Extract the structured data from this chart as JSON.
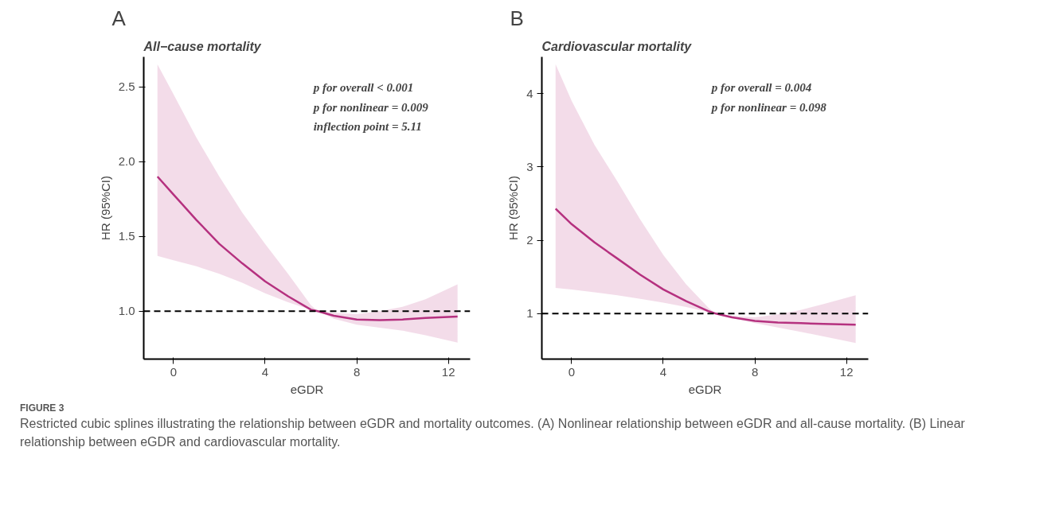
{
  "chart_data": [
    {
      "type": "line",
      "title": "All−cause mortality",
      "xlabel": "eGDR",
      "ylabel": "HR (95%CI)",
      "annotations": [
        "A",
        "p for overall < 0.001",
        "p for nonlinear = 0.009",
        "inflection point = 5.11"
      ],
      "x": [
        -0.7,
        0,
        1,
        2,
        3,
        4,
        5,
        6,
        6.3,
        7,
        8,
        9,
        10,
        11,
        12.4
      ],
      "series": [
        {
          "color": "#b5317f",
          "values": [
            1.9,
            1.78,
            1.61,
            1.45,
            1.32,
            1.2,
            1.1,
            1.01,
            1.0,
            0.97,
            0.945,
            0.94,
            0.945,
            0.955,
            0.965
          ],
          "lower": [
            1.37,
            1.34,
            1.3,
            1.25,
            1.19,
            1.12,
            1.06,
            1.01,
            1.0,
            0.95,
            0.91,
            0.89,
            0.87,
            0.84,
            0.79
          ],
          "upper": [
            2.65,
            2.45,
            2.16,
            1.9,
            1.66,
            1.45,
            1.25,
            1.04,
            1.0,
            0.99,
            0.98,
            1.0,
            1.03,
            1.08,
            1.18
          ]
        }
      ],
      "xlim": [
        -1.3,
        12.95
      ],
      "ylim": [
        0.68,
        2.7
      ],
      "xticks": [
        0,
        4,
        8,
        12
      ],
      "yticks": [
        {
          "value": 1.0,
          "label": "1.0"
        },
        {
          "value": 1.5,
          "label": "1.5"
        },
        {
          "value": 2.0,
          "label": "2.0"
        },
        {
          "value": 2.5,
          "label": "2.5"
        }
      ],
      "ref_lines": [
        {
          "axis": "y",
          "value": 1,
          "line_style": "dashed",
          "color": "#000000"
        }
      ],
      "grid": false,
      "line_style": "solid",
      "marker": "none"
    },
    {
      "type": "line",
      "title": "Cardiovascular mortality",
      "xlabel": "eGDR",
      "ylabel": "HR (95%CI)",
      "annotations": [
        "B",
        "p for overall = 0.004",
        "p for nonlinear = 0.098",
        "FIGURE 3",
        "Restricted cubic splines illustrating the relationship between eGDR and mortality outcomes. (A) Nonlinear relationship between eGDR and all-cause mortality. (B) Linear relationship between eGDR and cardiovascular mortality."
      ],
      "x": [
        -0.7,
        0,
        1,
        2,
        3,
        4,
        5,
        6,
        6.3,
        7,
        8,
        9,
        10,
        11,
        12.4
      ],
      "series": [
        {
          "color": "#b5317f",
          "values": [
            2.43,
            2.22,
            1.97,
            1.75,
            1.53,
            1.33,
            1.17,
            1.03,
            1.0,
            0.95,
            0.9,
            0.88,
            0.87,
            0.86,
            0.85
          ],
          "lower": [
            1.35,
            1.33,
            1.29,
            1.25,
            1.2,
            1.15,
            1.09,
            1.02,
            1.0,
            0.94,
            0.87,
            0.81,
            0.75,
            0.69,
            0.6
          ],
          "upper": [
            4.4,
            3.9,
            3.3,
            2.8,
            2.28,
            1.8,
            1.4,
            1.07,
            1.0,
            0.97,
            0.95,
            0.99,
            1.05,
            1.13,
            1.25
          ]
        }
      ],
      "xlim": [
        -1.3,
        12.95
      ],
      "ylim": [
        0.38,
        4.5
      ],
      "xticks": [
        0,
        4,
        8,
        12
      ],
      "yticks": [
        1,
        2,
        3,
        4
      ],
      "ref_lines": [
        {
          "axis": "y",
          "value": 1,
          "line_style": "dashed",
          "color": "#000000"
        }
      ],
      "grid": false,
      "line_style": "solid",
      "marker": "none"
    }
  ]
}
